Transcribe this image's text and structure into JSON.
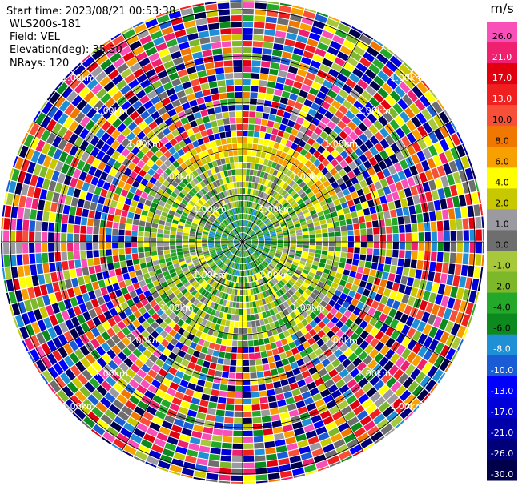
{
  "header": {
    "start_time": "Start time: 2023/08/21 00:53:38",
    "instrument": "WLS200s-181",
    "field": "Field: VEL",
    "elevation": "Elevation(deg): 35.30",
    "nrays": "NRays: 120"
  },
  "chart_data": {
    "type": "heatmap",
    "projection": "polar (PPI)",
    "title": "",
    "field": "VEL",
    "elevation_deg": 35.3,
    "nrays": 120,
    "range_rings_km": [
      1.0,
      2.0,
      3.0
    ],
    "range_ring_label_text": "1.00km",
    "radial_lines_deg": [
      0,
      30,
      60,
      90,
      120,
      150,
      180,
      210,
      240,
      270,
      300,
      330
    ],
    "colorbar": {
      "unit": "m/s",
      "bounds": [
        -30.0,
        -26.0,
        -21.0,
        -17.0,
        -13.0,
        -10.0,
        -8.0,
        -6.0,
        -4.0,
        -2.0,
        -1.0,
        0.0,
        1.0,
        2.0,
        4.0,
        6.0,
        8.0,
        10.0,
        13.0,
        17.0,
        21.0,
        26.0
      ],
      "tick_labels": [
        "-30.0",
        "-26.0",
        "-21.0",
        "-17.0",
        "-13.0",
        "-10.0",
        "-8.0",
        "-6.0",
        "-4.0",
        "-2.0",
        "-1.0",
        "0.0",
        "1.0",
        "2.0",
        "4.0",
        "6.0",
        "8.0",
        "10.0",
        "13.0",
        "17.0",
        "21.0",
        "26.0"
      ],
      "colors": [
        "#00004a",
        "#000078",
        "#0000a8",
        "#0000d8",
        "#0000ff",
        "#1a5bd6",
        "#1f8fd6",
        "#0c8a1e",
        "#23a82a",
        "#7db82a",
        "#a6c83a",
        "#6e6e6e",
        "#9a9aa0",
        "#c8c800",
        "#ffff00",
        "#f8a000",
        "#f07800",
        "#f85038",
        "#f02020",
        "#e00010",
        "#f02070",
        "#f850b8"
      ]
    },
    "field_summary": {
      "inner_rings": "mostly -4 to 2 m/s (greens, grays, yellows)",
      "outer_rings": "noise across all velocity bins"
    }
  }
}
